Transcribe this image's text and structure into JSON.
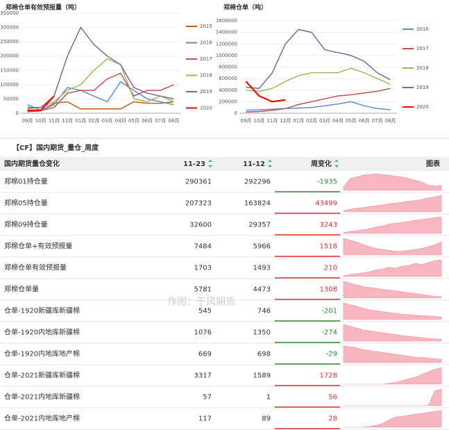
{
  "charts": [
    {
      "type": "line",
      "title": "郑棉仓单有效预报量（吨）",
      "categories": [
        "09月",
        "10月",
        "11月",
        "12月",
        "01月",
        "02月",
        "03月",
        "04月",
        "05月",
        "06月",
        "07月",
        "08月"
      ],
      "ylim": [
        0,
        350000
      ],
      "yticks": [
        0,
        50000,
        100000,
        150000,
        200000,
        250000,
        300000,
        350000
      ],
      "series": [
        {
          "name": "2015",
          "color": "#c55a11",
          "values": [
            5000,
            8000,
            35000,
            40000,
            15000,
            15000,
            15000,
            15000,
            40000,
            35000,
            35000,
            40000
          ]
        },
        {
          "name": "2016",
          "color": "#5b8fc9",
          "values": [
            30000,
            10000,
            30000,
            90000,
            80000,
            60000,
            40000,
            110000,
            80000,
            50000,
            40000,
            30000
          ]
        },
        {
          "name": "2017",
          "color": "#c0504d",
          "values": [
            5000,
            10000,
            20000,
            70000,
            80000,
            80000,
            120000,
            140000,
            60000,
            80000,
            80000,
            100000
          ]
        },
        {
          "name": "2018",
          "color": "#9bbb59",
          "values": [
            15000,
            20000,
            40000,
            80000,
            100000,
            150000,
            190000,
            170000,
            50000,
            40000,
            60000,
            40000
          ]
        },
        {
          "name": "2019",
          "color": "#8064a2",
          "values": [
            20000,
            20000,
            60000,
            200000,
            300000,
            240000,
            200000,
            170000,
            90000,
            70000,
            60000,
            50000
          ]
        },
        {
          "name": "2020",
          "color": "#ff0000",
          "values": [
            10000,
            10000,
            60000,
            null,
            null,
            null,
            null,
            null,
            null,
            null,
            null,
            null
          ]
        }
      ]
    },
    {
      "type": "line",
      "title": "郑棉仓单（吨）",
      "categories": [
        "09月",
        "10月",
        "11月",
        "12月",
        "01月",
        "02月",
        "03月",
        "04月",
        "05月",
        "06月",
        "07月",
        "08月"
      ],
      "ylim": [
        0,
        1600000
      ],
      "yticks": [
        0,
        200000,
        400000,
        600000,
        800000,
        1000000,
        1200000,
        1400000,
        1600000
      ],
      "series": [
        {
          "name": "2016",
          "color": "#5b8fc9",
          "values": [
            50000,
            60000,
            70000,
            80000,
            90000,
            100000,
            130000,
            160000,
            200000,
            130000,
            80000,
            60000
          ]
        },
        {
          "name": "2017",
          "color": "#c0504d",
          "values": [
            20000,
            30000,
            50000,
            80000,
            150000,
            200000,
            250000,
            300000,
            320000,
            350000,
            380000,
            430000
          ]
        },
        {
          "name": "2018",
          "color": "#9bbb59",
          "values": [
            400000,
            380000,
            430000,
            550000,
            650000,
            700000,
            700000,
            700000,
            780000,
            700000,
            600000,
            500000
          ]
        },
        {
          "name": "2019",
          "color": "#8064a2",
          "values": [
            450000,
            430000,
            700000,
            1200000,
            1450000,
            1400000,
            1100000,
            1050000,
            1000000,
            900000,
            700000,
            580000
          ]
        },
        {
          "name": "2020",
          "color": "#ff0000",
          "values": [
            550000,
            300000,
            200000,
            230000,
            null,
            null,
            null,
            null,
            null,
            null,
            null,
            null
          ]
        }
      ]
    }
  ],
  "table": {
    "title": "【CF】国内期货_量仓_周度",
    "watermark": "作图：于风期货",
    "headers": [
      "国内期货量仓变化",
      "11-23",
      "11-12",
      "周变化",
      "图表"
    ],
    "rows": [
      {
        "name": "郑棉01持仓量",
        "a": 290361,
        "b": 292296,
        "change": -1935,
        "trend": [
          20,
          70,
          80,
          90,
          95,
          100,
          95,
          90,
          85,
          80,
          70,
          60,
          50,
          30,
          25,
          30
        ]
      },
      {
        "name": "郑棉05持仓量",
        "a": 207323,
        "b": 163824,
        "change": 43499,
        "trend": [
          5,
          15,
          20,
          25,
          30,
          35,
          40,
          45,
          50,
          55,
          60,
          65,
          70,
          80,
          85,
          95
        ]
      },
      {
        "name": "郑棉09持仓量",
        "a": 32600,
        "b": 29357,
        "change": 3243,
        "trend": [
          5,
          10,
          15,
          20,
          25,
          35,
          40,
          50,
          55,
          60,
          65,
          70,
          75,
          80,
          85,
          90
        ]
      },
      {
        "name": "郑棉仓单+有效预报量",
        "a": 7484,
        "b": 5966,
        "change": 1518,
        "trend": [
          90,
          80,
          70,
          55,
          45,
          35,
          30,
          25,
          20,
          20,
          25,
          30,
          35,
          45,
          55,
          70
        ]
      },
      {
        "name": "郑棉仓单有效预报量",
        "a": 1703,
        "b": 1493,
        "change": 210,
        "trend": [
          5,
          10,
          15,
          20,
          25,
          35,
          40,
          50,
          45,
          55,
          60,
          70,
          65,
          75,
          85,
          90
        ]
      },
      {
        "name": "郑棉仓单量",
        "a": 5781,
        "b": 4473,
        "change": 1308,
        "trend": [
          95,
          85,
          75,
          65,
          60,
          55,
          50,
          45,
          40,
          35,
          30,
          25,
          20,
          15,
          10,
          8
        ]
      },
      {
        "name": "仓单-1920新疆库新疆棉",
        "a": 545,
        "b": 746,
        "change": -201,
        "trend": [
          95,
          85,
          75,
          65,
          55,
          50,
          45,
          40,
          35,
          30,
          28,
          25,
          22,
          20,
          18,
          15
        ]
      },
      {
        "name": "仓单-1920内地库新疆棉",
        "a": 1076,
        "b": 1350,
        "change": -274,
        "trend": [
          90,
          80,
          70,
          60,
          55,
          50,
          45,
          40,
          35,
          30,
          25,
          22,
          18,
          15,
          12,
          10
        ]
      },
      {
        "name": "仓单-1920内地库地产棉",
        "a": 669,
        "b": 698,
        "change": -29,
        "trend": [
          90,
          85,
          80,
          70,
          65,
          60,
          55,
          50,
          45,
          40,
          35,
          30,
          28,
          25,
          20,
          18
        ]
      },
      {
        "name": "仓单-2021新疆库新疆棉",
        "a": 3317,
        "b": 1589,
        "change": 1728,
        "trend": [
          0,
          0,
          0,
          0,
          0,
          0,
          0,
          5,
          10,
          20,
          30,
          40,
          55,
          70,
          85,
          95
        ]
      },
      {
        "name": "仓单-2021内地库新疆棉",
        "a": 57,
        "b": 1,
        "change": 56,
        "trend": [
          0,
          0,
          0,
          0,
          0,
          0,
          0,
          0,
          0,
          0,
          0,
          0,
          0,
          2,
          80,
          90
        ]
      },
      {
        "name": "仓单-2021内地库地产棉",
        "a": 117,
        "b": 89,
        "change": 28,
        "trend": [
          0,
          0,
          0,
          0,
          5,
          10,
          20,
          40,
          55,
          60,
          65,
          70,
          75,
          80,
          85,
          90
        ]
      }
    ]
  }
}
